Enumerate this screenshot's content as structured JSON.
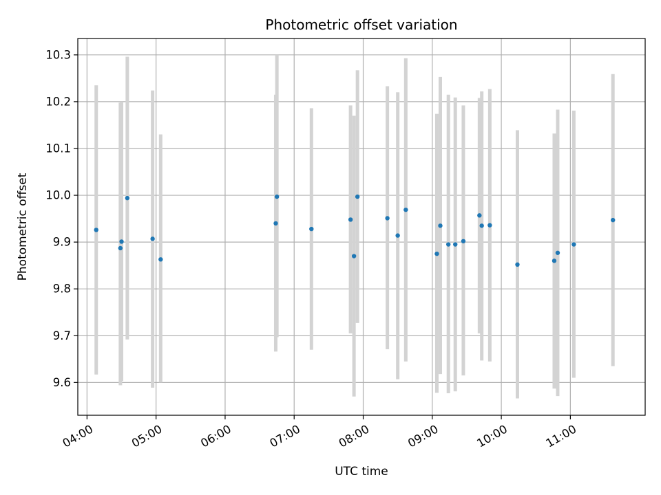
{
  "chart_data": {
    "type": "scatter",
    "title": "Photometric offset variation",
    "xlabel": "UTC time",
    "ylabel": "Photometric offset",
    "xlim": [
      "03:52",
      "12:05"
    ],
    "ylim": [
      9.53,
      10.335
    ],
    "grid": true,
    "x_ticks": [
      "04:00",
      "05:00",
      "06:00",
      "07:00",
      "08:00",
      "09:00",
      "10:00",
      "11:00"
    ],
    "y_ticks": [
      9.6,
      9.7,
      9.8,
      9.9,
      10.0,
      10.1,
      10.2,
      10.3
    ],
    "colors": {
      "points": "#1f77b4",
      "error_bars": "#d3d3d3",
      "grid": "#b0b0b0"
    },
    "series": [
      {
        "error_bars": true,
        "points": [
          {
            "x": "04:08",
            "y": 9.926,
            "ylow": 9.617,
            "yhigh": 10.235
          },
          {
            "x": "04:29",
            "y": 9.887,
            "ylow": 9.594,
            "yhigh": 10.198
          },
          {
            "x": "04:30",
            "y": 9.901,
            "ylow": 9.603,
            "yhigh": 10.2
          },
          {
            "x": "04:35",
            "y": 9.994,
            "ylow": 9.692,
            "yhigh": 10.296
          },
          {
            "x": "04:57",
            "y": 9.907,
            "ylow": 9.589,
            "yhigh": 10.224
          },
          {
            "x": "05:04",
            "y": 9.863,
            "ylow": 9.6,
            "yhigh": 10.13
          },
          {
            "x": "06:44",
            "y": 9.94,
            "ylow": 9.666,
            "yhigh": 10.215
          },
          {
            "x": "06:45",
            "y": 9.997,
            "ylow": 9.697,
            "yhigh": 10.3
          },
          {
            "x": "07:15",
            "y": 9.928,
            "ylow": 9.67,
            "yhigh": 10.186
          },
          {
            "x": "07:49",
            "y": 9.948,
            "ylow": 9.705,
            "yhigh": 10.192
          },
          {
            "x": "07:52",
            "y": 9.87,
            "ylow": 9.57,
            "yhigh": 10.17
          },
          {
            "x": "07:55",
            "y": 9.997,
            "ylow": 9.727,
            "yhigh": 10.267
          },
          {
            "x": "08:21",
            "y": 9.951,
            "ylow": 9.671,
            "yhigh": 10.233
          },
          {
            "x": "08:30",
            "y": 9.914,
            "ylow": 9.607,
            "yhigh": 10.22
          },
          {
            "x": "08:37",
            "y": 9.969,
            "ylow": 9.645,
            "yhigh": 10.293
          },
          {
            "x": "09:04",
            "y": 9.875,
            "ylow": 9.578,
            "yhigh": 10.174
          },
          {
            "x": "09:07",
            "y": 9.935,
            "ylow": 9.618,
            "yhigh": 10.253
          },
          {
            "x": "09:14",
            "y": 9.895,
            "ylow": 9.577,
            "yhigh": 10.215
          },
          {
            "x": "09:20",
            "y": 9.895,
            "ylow": 9.581,
            "yhigh": 10.209
          },
          {
            "x": "09:27",
            "y": 9.902,
            "ylow": 9.615,
            "yhigh": 10.192
          },
          {
            "x": "09:41",
            "y": 9.957,
            "ylow": 9.705,
            "yhigh": 10.208
          },
          {
            "x": "09:43",
            "y": 9.935,
            "ylow": 9.647,
            "yhigh": 10.222
          },
          {
            "x": "09:50",
            "y": 9.936,
            "ylow": 9.645,
            "yhigh": 10.227
          },
          {
            "x": "10:14",
            "y": 9.852,
            "ylow": 9.566,
            "yhigh": 10.139
          },
          {
            "x": "10:46",
            "y": 9.86,
            "ylow": 9.587,
            "yhigh": 10.132
          },
          {
            "x": "10:49",
            "y": 9.877,
            "ylow": 9.571,
            "yhigh": 10.183
          },
          {
            "x": "11:03",
            "y": 9.895,
            "ylow": 9.61,
            "yhigh": 10.181
          },
          {
            "x": "11:37",
            "y": 9.947,
            "ylow": 9.635,
            "yhigh": 10.259
          }
        ]
      }
    ]
  }
}
